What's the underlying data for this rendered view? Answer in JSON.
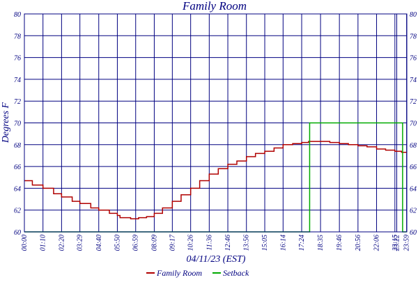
{
  "chart_data": {
    "type": "line",
    "title": "Family Room",
    "xlabel": "04/11/23 (EST)",
    "ylabel": "Degrees F",
    "ylim": [
      60,
      80
    ],
    "yticks": [
      60,
      62,
      64,
      66,
      68,
      70,
      72,
      74,
      76,
      78,
      80
    ],
    "x_range_minutes": [
      0,
      1440
    ],
    "x_ticks": [
      {
        "label": "00:00",
        "minute": 0
      },
      {
        "label": "01:10",
        "minute": 70
      },
      {
        "label": "02:20",
        "minute": 140
      },
      {
        "label": "03:29",
        "minute": 209
      },
      {
        "label": "04:40",
        "minute": 280
      },
      {
        "label": "05:50",
        "minute": 350
      },
      {
        "label": "06:59",
        "minute": 419
      },
      {
        "label": "08:09",
        "minute": 489
      },
      {
        "label": "09:17",
        "minute": 557
      },
      {
        "label": "10:26",
        "minute": 626
      },
      {
        "label": "11:36",
        "minute": 696
      },
      {
        "label": "12:46",
        "minute": 766
      },
      {
        "label": "13:56",
        "minute": 836
      },
      {
        "label": "15:05",
        "minute": 905
      },
      {
        "label": "16:14",
        "minute": 974
      },
      {
        "label": "17:24",
        "minute": 1044
      },
      {
        "label": "18:35",
        "minute": 1115
      },
      {
        "label": "19:46",
        "minute": 1186
      },
      {
        "label": "20:56",
        "minute": 1256
      },
      {
        "label": "22:06",
        "minute": 1326
      },
      {
        "label": "23:15",
        "minute": 1395
      },
      {
        "label": "23:22",
        "minute": 1402
      },
      {
        "label": "23:59",
        "minute": 1439
      }
    ],
    "series": [
      {
        "name": "Family Room",
        "color": "#b00000",
        "style": "step",
        "points": [
          [
            0,
            64.7
          ],
          [
            30,
            64.3
          ],
          [
            70,
            64.0
          ],
          [
            110,
            63.5
          ],
          [
            140,
            63.2
          ],
          [
            180,
            62.8
          ],
          [
            209,
            62.6
          ],
          [
            250,
            62.2
          ],
          [
            280,
            62.0
          ],
          [
            320,
            61.7
          ],
          [
            350,
            61.5
          ],
          [
            360,
            61.3
          ],
          [
            400,
            61.2
          ],
          [
            430,
            61.3
          ],
          [
            460,
            61.4
          ],
          [
            489,
            61.7
          ],
          [
            520,
            62.2
          ],
          [
            557,
            62.8
          ],
          [
            590,
            63.4
          ],
          [
            626,
            64.0
          ],
          [
            660,
            64.7
          ],
          [
            696,
            65.3
          ],
          [
            730,
            65.8
          ],
          [
            766,
            66.2
          ],
          [
            800,
            66.5
          ],
          [
            836,
            66.9
          ],
          [
            870,
            67.2
          ],
          [
            905,
            67.4
          ],
          [
            940,
            67.7
          ],
          [
            974,
            68.0
          ],
          [
            1010,
            68.1
          ],
          [
            1044,
            68.2
          ],
          [
            1070,
            68.3
          ],
          [
            1100,
            68.3
          ],
          [
            1115,
            68.3
          ],
          [
            1150,
            68.2
          ],
          [
            1186,
            68.1
          ],
          [
            1220,
            68.0
          ],
          [
            1256,
            67.9
          ],
          [
            1290,
            67.8
          ],
          [
            1326,
            67.6
          ],
          [
            1360,
            67.5
          ],
          [
            1395,
            67.4
          ],
          [
            1420,
            67.3
          ],
          [
            1439,
            67.3
          ]
        ]
      },
      {
        "name": "Setback",
        "color": "#00aa00",
        "style": "step",
        "points": [
          [
            0,
            60
          ],
          [
            1074,
            60
          ],
          [
            1074,
            70
          ],
          [
            1424,
            70
          ],
          [
            1424,
            60
          ],
          [
            1439,
            60
          ]
        ]
      }
    ],
    "legend": [
      {
        "name": "Family Room",
        "color": "#b00000"
      },
      {
        "name": "Setback",
        "color": "#00aa00"
      }
    ],
    "legend_position": "bottom-center",
    "grid": true,
    "colors": {
      "axis": "#000080",
      "grid": "#000080",
      "text": "#000080"
    }
  }
}
